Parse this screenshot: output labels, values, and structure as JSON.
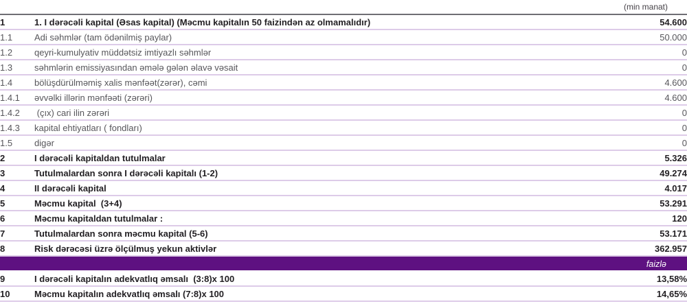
{
  "header": {
    "unit_label": "(min manat)"
  },
  "colors": {
    "divider_band": "#5e1181",
    "row_border": "#ddcbe8",
    "table_top_border": "#6f6e73",
    "bold_text": "#232024",
    "regular_text": "#57565b"
  },
  "table": {
    "rows": [
      {
        "num": "1",
        "label": "1. I dərəcəli kapital (Əsas kapital) (Məcmu kapitalın 50 faizindən az olmamalıdır)",
        "value": "54.600",
        "bold": true
      },
      {
        "num": "1.1",
        "label": "Adi səhmlər (tam ödənilmiş paylar)",
        "value": "50.000",
        "bold": false
      },
      {
        "num": "1.2",
        "label": "qeyri-kumulyativ müddətsiz imtiyazlı səhmlər",
        "value": "0",
        "bold": false
      },
      {
        "num": "1.3",
        "label": "səhmlərin emissiyasından əmələ gələn əlavə vəsait",
        "value": "0",
        "bold": false
      },
      {
        "num": "1.4",
        "label": "bölüşdürülməmiş xalis mənfəət(zərər), cəmi",
        "value": "4.600",
        "bold": false
      },
      {
        "num": "1.4.1",
        "label": "əvvəlki illərin mənfəəti (zərəri)",
        "value": "4.600",
        "bold": false
      },
      {
        "num": "1.4.2",
        "label": " (çıx) cari ilin zərəri",
        "value": "0",
        "bold": false
      },
      {
        "num": "1.4.3",
        "label": "kapital ehtiyatları ( fondları)",
        "value": "0",
        "bold": false
      },
      {
        "num": "1.5",
        "label": "digər",
        "value": "0",
        "bold": false
      },
      {
        "num": "2",
        "label": "I dərəcəli kapitaldan tutulmalar",
        "value": "5.326",
        "bold": true
      },
      {
        "num": "3",
        "label": "Tutulmalardan sonra I dərəcəli kapitalı (1-2)",
        "value": "49.274",
        "bold": true
      },
      {
        "num": "4",
        "label": "II dərəcəli kapital",
        "value": "4.017",
        "bold": true
      },
      {
        "num": "5",
        "label": "Məcmu kapital  (3+4)",
        "value": "53.291",
        "bold": true
      },
      {
        "num": "6",
        "label": "Məcmu kapitaldan tutulmalar :",
        "value": "120",
        "bold": true
      },
      {
        "num": "7",
        "label": "Tutulmalardan sonra məcmu kapital (5-6)",
        "value": "53.171",
        "bold": true
      },
      {
        "num": "8",
        "label": "Risk dərəcəsi üzrə ölçülmuş yekun aktivlər",
        "value": "362.957",
        "bold": true
      },
      {
        "type": "divider",
        "label": "faizlə"
      },
      {
        "num": "9",
        "label": "I dərəcəli kapitalın adekvatlıq əmsalı  (3:8)x 100",
        "value": "13,58%",
        "bold": true
      },
      {
        "num": "10",
        "label": "Məcmu kapitalın adekvatlıq əmsalı (7:8)x 100",
        "value": "14,65%",
        "bold": true
      }
    ]
  }
}
